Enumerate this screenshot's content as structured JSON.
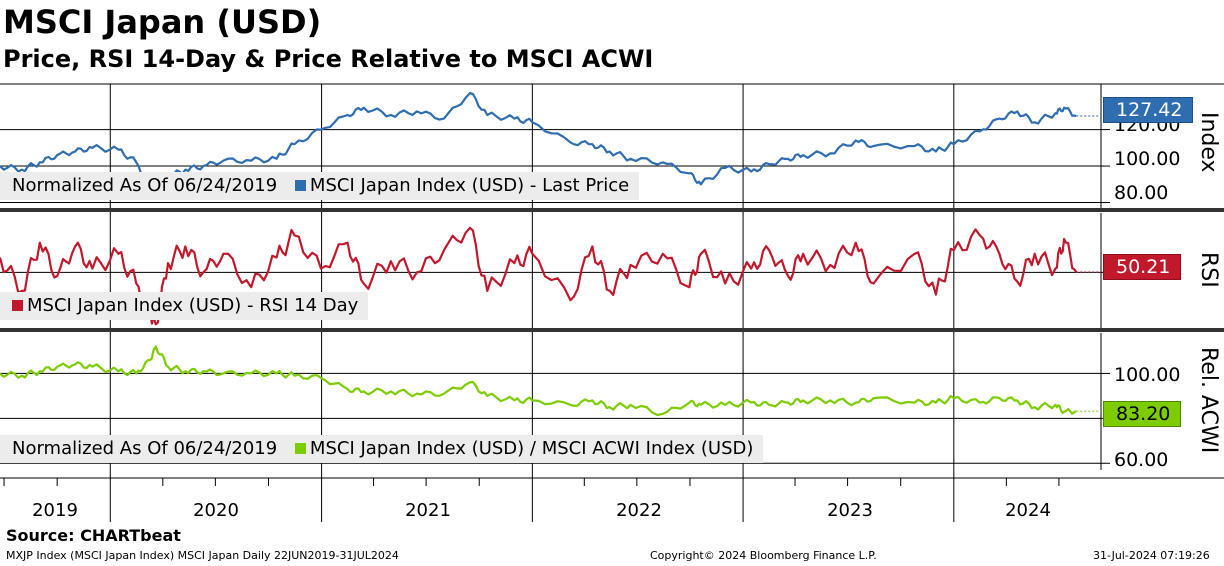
{
  "title": "MSCI Japan (USD)",
  "subtitle": "Price, RSI 14-Day & Price Relative to MSCI ACWI",
  "source": "Source: CHARTbeat",
  "footer": {
    "left": "MXJP Index (MSCI Japan Index) MSCI Japan  Daily 22JUN2019-31JUL2024",
    "center": "Copyright© 2024 Bloomberg Finance L.P.",
    "right": "31-Jul-2024 07:19:26"
  },
  "colors": {
    "price": "#2e6db0",
    "rsi": "#c1182c",
    "relative": "#7ccc00",
    "legend_bg": "#ececec",
    "separator": "#333333"
  },
  "chart_data": [
    {
      "type": "line",
      "panel": "price",
      "axis_label": "Index",
      "legend": {
        "text1": "Normalized As Of 06/24/2019",
        "series_name": "MSCI Japan Index (USD) - Last Price"
      },
      "y_ticks": [
        "120.00",
        "100.00",
        "80.00"
      ],
      "ylim": [
        77,
        145
      ],
      "last_value_label": "127.42",
      "series": [
        {
          "name": "MSCI Japan Index (USD) - Last Price",
          "x": [
            "2019-06-24",
            "2019-08-01",
            "2019-09-01",
            "2019-10-01",
            "2019-11-01",
            "2019-12-01",
            "2020-01-15",
            "2020-02-15",
            "2020-03-10",
            "2020-03-20",
            "2020-04-10",
            "2020-05-10",
            "2020-06-10",
            "2020-07-15",
            "2020-09-01",
            "2020-10-15",
            "2020-11-15",
            "2020-12-31",
            "2021-02-15",
            "2021-03-15",
            "2021-05-01",
            "2021-06-15",
            "2021-08-01",
            "2021-09-15",
            "2021-10-15",
            "2021-12-01",
            "2022-01-01",
            "2022-03-08",
            "2022-04-15",
            "2022-05-15",
            "2022-06-20",
            "2022-08-15",
            "2022-09-30",
            "2022-10-20",
            "2022-12-01",
            "2023-01-15",
            "2023-02-15",
            "2023-03-20",
            "2023-04-15",
            "2023-06-01",
            "2023-07-15",
            "2023-08-15",
            "2023-10-25",
            "2023-12-01",
            "2024-01-01",
            "2024-02-15",
            "2024-03-20",
            "2024-04-20",
            "2024-05-20",
            "2024-06-25",
            "2024-07-10",
            "2024-07-31"
          ],
          "y": [
            100,
            98,
            102,
            106,
            108,
            110,
            109,
            102,
            88,
            84,
            94,
            98,
            100,
            103,
            103,
            104,
            112,
            120,
            128,
            132,
            128,
            130,
            126,
            140,
            128,
            126,
            124,
            113,
            112,
            108,
            104,
            102,
            96,
            90,
            99,
            97,
            101,
            104,
            106,
            107,
            114,
            111,
            111,
            108,
            112,
            119,
            126,
            130,
            124,
            129,
            132,
            127.42
          ]
        }
      ]
    },
    {
      "type": "line",
      "panel": "rsi",
      "axis_label": "RSI",
      "legend": {
        "series_name": "MSCI Japan Index (USD) - RSI 14 Day"
      },
      "ylim": [
        20,
        82
      ],
      "last_value_label": "50.21",
      "series": [
        {
          "name": "MSCI Japan Index (USD) - RSI 14 Day",
          "x": [
            "2019-06-24",
            "2019-08-01",
            "2019-09-01",
            "2019-10-01",
            "2019-11-01",
            "2019-12-01",
            "2020-01-15",
            "2020-02-15",
            "2020-03-10",
            "2020-03-20",
            "2020-04-10",
            "2020-05-10",
            "2020-06-10",
            "2020-07-15",
            "2020-09-01",
            "2020-10-15",
            "2020-11-15",
            "2020-12-31",
            "2021-02-15",
            "2021-03-15",
            "2021-05-01",
            "2021-06-15",
            "2021-08-01",
            "2021-09-15",
            "2021-10-15",
            "2021-12-01",
            "2022-01-01",
            "2022-03-08",
            "2022-04-15",
            "2022-05-15",
            "2022-06-20",
            "2022-08-15",
            "2022-09-30",
            "2022-10-20",
            "2022-12-01",
            "2023-01-15",
            "2023-02-15",
            "2023-03-20",
            "2023-04-15",
            "2023-06-01",
            "2023-07-15",
            "2023-08-15",
            "2023-10-25",
            "2023-12-01",
            "2024-01-01",
            "2024-02-15",
            "2024-03-20",
            "2024-04-20",
            "2024-05-20",
            "2024-06-25",
            "2024-07-10",
            "2024-07-31"
          ],
          "y": [
            58,
            40,
            66,
            48,
            64,
            52,
            60,
            44,
            28,
            22,
            55,
            64,
            50,
            60,
            42,
            58,
            70,
            52,
            66,
            44,
            56,
            50,
            62,
            74,
            40,
            55,
            60,
            35,
            64,
            40,
            54,
            60,
            42,
            60,
            44,
            52,
            62,
            48,
            60,
            54,
            66,
            44,
            60,
            38,
            62,
            70,
            60,
            45,
            60,
            52,
            68,
            50.21
          ]
        }
      ]
    },
    {
      "type": "line",
      "panel": "relative",
      "axis_label": "Rel. ACWI",
      "legend": {
        "text1": "Normalized As Of 06/24/2019",
        "series_name": "MSCI Japan Index (USD) / MSCI ACWI Index (USD)"
      },
      "y_ticks": [
        "100.00",
        "60.00"
      ],
      "ylim": [
        57,
        118
      ],
      "last_value_label": "83.20",
      "series": [
        {
          "name": "MSCI Japan Index (USD) / MSCI ACWI Index (USD)",
          "x": [
            "2019-06-24",
            "2019-08-01",
            "2019-09-01",
            "2019-10-01",
            "2019-11-01",
            "2019-12-01",
            "2020-01-15",
            "2020-02-15",
            "2020-03-10",
            "2020-03-20",
            "2020-04-10",
            "2020-05-10",
            "2020-06-10",
            "2020-07-15",
            "2020-09-01",
            "2020-10-15",
            "2020-11-15",
            "2020-12-31",
            "2021-02-15",
            "2021-03-15",
            "2021-05-01",
            "2021-06-15",
            "2021-08-01",
            "2021-09-15",
            "2021-10-15",
            "2021-12-01",
            "2022-01-01",
            "2022-03-08",
            "2022-04-15",
            "2022-05-15",
            "2022-06-20",
            "2022-08-15",
            "2022-09-30",
            "2022-10-20",
            "2022-12-01",
            "2023-01-15",
            "2023-02-15",
            "2023-03-20",
            "2023-04-15",
            "2023-06-01",
            "2023-07-15",
            "2023-08-15",
            "2023-10-25",
            "2023-12-01",
            "2024-01-01",
            "2024-02-15",
            "2024-03-20",
            "2024-04-20",
            "2024-05-20",
            "2024-06-25",
            "2024-07-10",
            "2024-07-31"
          ],
          "y": [
            100,
            99,
            101,
            103,
            104,
            103,
            101,
            100,
            106,
            112,
            103,
            101,
            101,
            100,
            100,
            100,
            99,
            98,
            93,
            92,
            92,
            91,
            91,
            96,
            90,
            88,
            88,
            86,
            88,
            85,
            86,
            82,
            87,
            86,
            86,
            87,
            86,
            87,
            88,
            88,
            87,
            89,
            87,
            87,
            89,
            87,
            89,
            88,
            85,
            86,
            83,
            83.2
          ]
        }
      ]
    }
  ],
  "x_axis": {
    "year_labels": [
      "2019",
      "2020",
      "2021",
      "2022",
      "2023",
      "2024"
    ]
  }
}
